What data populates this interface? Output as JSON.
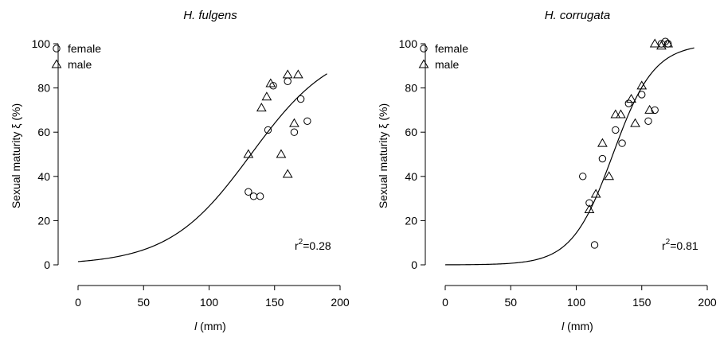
{
  "chart_data": [
    {
      "type": "scatter",
      "title": "H. fulgens",
      "xlabel_var": "l",
      "xlabel_unit": " (mm)",
      "ylabel": "Sexual maturity ξ (%)",
      "xlim": [
        0,
        200
      ],
      "ylim": [
        0,
        100
      ],
      "x_ticks": [
        0,
        50,
        100,
        150,
        200
      ],
      "y_ticks": [
        0,
        20,
        40,
        60,
        80,
        100
      ],
      "grid": false,
      "legend_position": "top-left",
      "annotation_base": "r",
      "annotation_sup": "2",
      "annotation_rest": "=0.28",
      "series": [
        {
          "name": "female",
          "marker": "circle",
          "x": [
            130,
            134,
            139,
            145,
            149,
            160,
            165,
            170,
            175
          ],
          "y": [
            33,
            31,
            31,
            61,
            81,
            83,
            60,
            75,
            65
          ]
        },
        {
          "name": "male",
          "marker": "triangle",
          "x": [
            130,
            140,
            144,
            147,
            155,
            160,
            160,
            165,
            168
          ],
          "y": [
            50,
            71,
            76,
            82,
            50,
            86,
            41,
            64,
            86
          ]
        }
      ],
      "fit_curve": {
        "midpoint": 132,
        "slope": 0.0319,
        "x_range": [
          0,
          190
        ]
      }
    },
    {
      "type": "scatter",
      "title": "H. corrugata",
      "xlabel_var": "l",
      "xlabel_unit": " (mm)",
      "ylabel": "Sexual maturity ξ (%)",
      "xlim": [
        0,
        200
      ],
      "ylim": [
        0,
        100
      ],
      "x_ticks": [
        0,
        50,
        100,
        150,
        200
      ],
      "y_ticks": [
        0,
        20,
        40,
        60,
        80,
        100
      ],
      "grid": false,
      "legend_position": "top-left",
      "annotation_base": "r",
      "annotation_sup": "2",
      "annotation_rest": "=0.81",
      "series": [
        {
          "name": "female",
          "marker": "circle",
          "x": [
            105,
            110,
            114,
            120,
            130,
            135,
            140,
            150,
            155,
            160,
            165,
            168,
            170
          ],
          "y": [
            40,
            28,
            9,
            48,
            61,
            55,
            73,
            77,
            65,
            70,
            100,
            101,
            100
          ]
        },
        {
          "name": "male",
          "marker": "triangle",
          "x": [
            110,
            115,
            120,
            125,
            130,
            134,
            142,
            145,
            150,
            156,
            160,
            165,
            170
          ],
          "y": [
            25,
            32,
            55,
            40,
            68,
            68,
            75,
            64,
            81,
            70,
            100,
            99,
            100
          ]
        }
      ],
      "fit_curve": {
        "midpoint": 128,
        "slope": 0.0637,
        "x_range": [
          0,
          190
        ]
      }
    }
  ]
}
